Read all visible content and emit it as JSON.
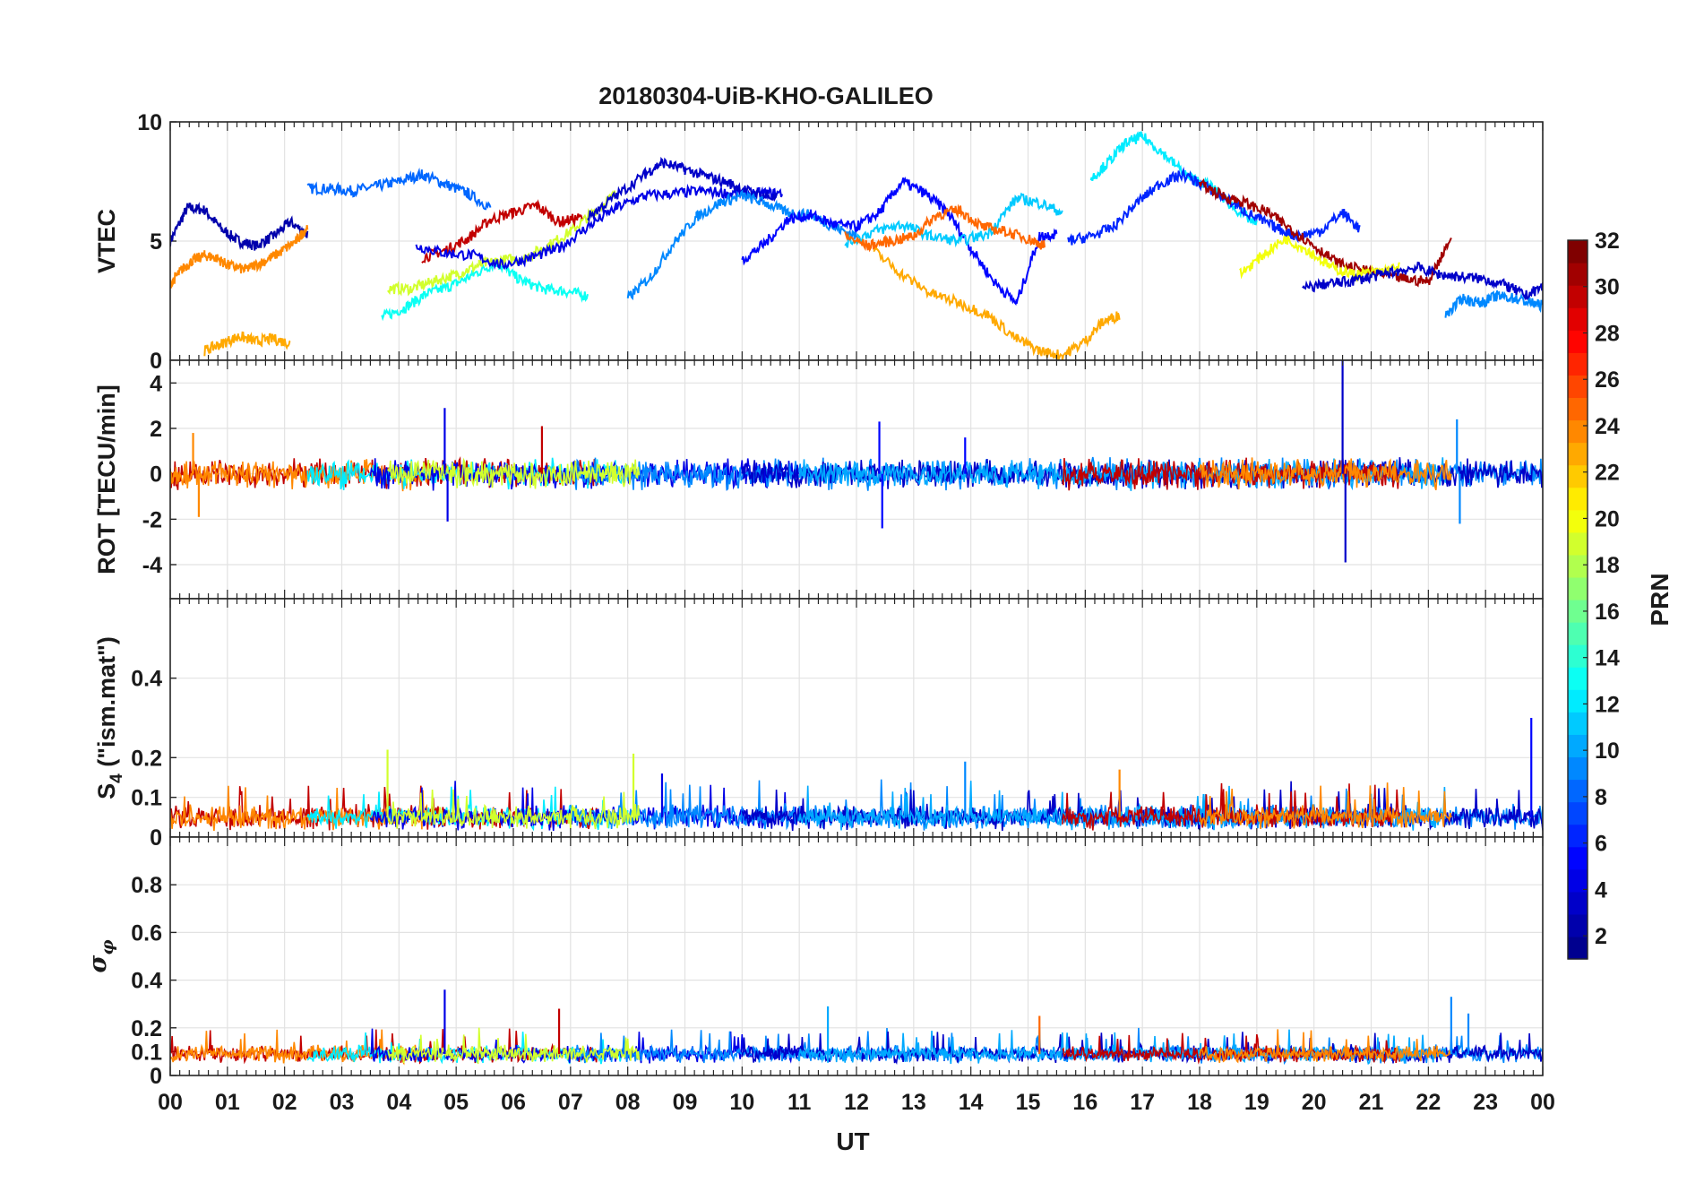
{
  "chart_data": {
    "type": "line",
    "title": "20180304-UiB-KHO-GALILEO",
    "xlabel": "UT",
    "x_ticks": [
      "00",
      "01",
      "02",
      "03",
      "04",
      "05",
      "06",
      "07",
      "08",
      "09",
      "10",
      "11",
      "12",
      "13",
      "14",
      "15",
      "16",
      "17",
      "18",
      "19",
      "20",
      "21",
      "22",
      "23",
      "00"
    ],
    "xlim": [
      0,
      24
    ],
    "grid": true,
    "colorbar": {
      "label": "PRN",
      "range": [
        1,
        32
      ],
      "ticks": [
        "2",
        "4",
        "6",
        "8",
        "10",
        "12",
        "14",
        "16",
        "18",
        "20",
        "22",
        "24",
        "26",
        "28",
        "30",
        "32"
      ],
      "colormap": "jet",
      "colors": [
        "#00008f",
        "#0000ff",
        "#0080ff",
        "#00ffff",
        "#80ff80",
        "#ffff00",
        "#ff8000",
        "#ff0000",
        "#800000"
      ]
    },
    "panels": [
      {
        "id": "vtec",
        "ylabel": "VTEC",
        "ylim": [
          0,
          10
        ],
        "yticks": [
          "0",
          "5",
          "10"
        ],
        "series": [
          {
            "prn": 2,
            "x": [
              0.0,
              0.3,
              0.6,
              0.9,
              1.2,
              1.5,
              1.8,
              2.1,
              2.4
            ],
            "y": [
              5.0,
              6.4,
              6.3,
              5.5,
              5.0,
              4.8,
              5.2,
              5.8,
              5.3
            ]
          },
          {
            "prn": 8,
            "x": [
              2.4,
              2.8,
              3.2,
              3.6,
              4.0,
              4.4,
              4.8,
              5.2,
              5.6
            ],
            "y": [
              7.2,
              7.2,
              7.1,
              7.3,
              7.5,
              7.8,
              7.4,
              7.0,
              6.4
            ]
          },
          {
            "prn": 13,
            "x": [
              3.7,
              4.1,
              4.5,
              4.9,
              5.3,
              5.7,
              6.1,
              6.5,
              6.9,
              7.3
            ],
            "y": [
              1.8,
              2.2,
              2.8,
              3.1,
              3.6,
              4.1,
              3.4,
              3.0,
              2.9,
              2.7
            ]
          },
          {
            "prn": 19,
            "x": [
              3.8,
              4.2,
              4.6,
              5.0,
              5.4,
              5.8,
              6.2,
              6.6,
              7.0,
              7.4,
              7.8
            ],
            "y": [
              3.0,
              3.0,
              3.3,
              3.6,
              4.0,
              4.2,
              4.3,
              4.8,
              5.4,
              6.2,
              7.0
            ]
          },
          {
            "prn": 30,
            "x": [
              4.4,
              4.8,
              5.2,
              5.6,
              6.0,
              6.4,
              6.8,
              7.2
            ],
            "y": [
              4.3,
              4.6,
              5.1,
              5.9,
              6.2,
              6.5,
              5.8,
              6.0
            ]
          },
          {
            "prn": 24,
            "x": [
              0.0,
              0.2,
              0.4,
              0.6,
              0.8,
              1.0,
              1.3,
              1.6,
              1.9,
              2.2,
              2.4
            ],
            "y": [
              3.2,
              3.8,
              4.2,
              4.4,
              4.3,
              4.0,
              3.8,
              4.1,
              4.5,
              5.0,
              5.6
            ]
          },
          {
            "prn": 23,
            "x": [
              0.6,
              0.9,
              1.2,
              1.5,
              1.8,
              2.1
            ],
            "y": [
              0.4,
              0.7,
              1.0,
              0.8,
              0.9,
              0.7
            ]
          },
          {
            "prn": 4,
            "x": [
              4.3,
              4.8,
              5.3,
              5.8,
              6.3,
              6.8,
              7.3,
              7.8,
              8.3,
              8.8,
              9.3,
              9.8,
              10.3,
              10.7
            ],
            "y": [
              4.8,
              4.5,
              4.4,
              4.0,
              4.3,
              4.7,
              5.6,
              6.4,
              6.9,
              7.0,
              7.1,
              7.0,
              7.0,
              7.0
            ]
          },
          {
            "prn": 3,
            "x": [
              7.3,
              7.8,
              8.3,
              8.6,
              9.0,
              9.4,
              9.8,
              10.2,
              10.6
            ],
            "y": [
              6.0,
              6.9,
              7.8,
              8.3,
              8.0,
              7.7,
              7.4,
              7.0,
              6.8
            ]
          },
          {
            "prn": 9,
            "x": [
              8.0,
              8.4,
              8.8,
              9.2,
              9.6,
              10.0,
              10.4,
              10.8,
              11.2,
              11.6,
              12.0
            ],
            "y": [
              2.6,
              3.5,
              4.9,
              6.0,
              6.6,
              6.9,
              6.6,
              6.2,
              6.1,
              5.6,
              5.2
            ]
          },
          {
            "prn": 5,
            "x": [
              10.0,
              10.4,
              10.8,
              11.2,
              11.6,
              12.0,
              12.4,
              12.8,
              13.2,
              13.6,
              14.0,
              14.4,
              14.8,
              15.2,
              15.5
            ],
            "y": [
              4.2,
              4.9,
              5.9,
              6.1,
              5.7,
              5.6,
              6.2,
              7.5,
              7.0,
              6.2,
              4.7,
              3.3,
              2.4,
              5.2,
              5.3
            ]
          },
          {
            "prn": 11,
            "x": [
              11.8,
              12.3,
              12.8,
              13.3,
              13.8,
              14.3,
              14.8,
              15.2,
              15.6
            ],
            "y": [
              4.9,
              5.4,
              5.7,
              5.2,
              5.0,
              5.3,
              6.8,
              6.6,
              6.2
            ]
          },
          {
            "prn": 25,
            "x": [
              11.8,
              12.2,
              12.6,
              13.0,
              13.4,
              13.8,
              14.2,
              14.6,
              15.0,
              15.3
            ],
            "y": [
              5.2,
              4.8,
              5.0,
              5.2,
              6.1,
              6.3,
              5.6,
              5.4,
              5.1,
              4.8
            ]
          },
          {
            "prn": 23,
            "x": [
              12.3,
              12.8,
              13.3,
              13.8,
              14.3,
              14.8,
              15.2,
              15.6,
              16.0,
              16.3,
              16.6
            ],
            "y": [
              4.6,
              3.6,
              2.8,
              2.4,
              1.9,
              0.9,
              0.4,
              0.2,
              0.8,
              1.6,
              1.9
            ]
          },
          {
            "prn": 12,
            "x": [
              16.1,
              16.4,
              16.7,
              17.0,
              17.4,
              17.8,
              18.2,
              18.6,
              19.0
            ],
            "y": [
              7.6,
              8.3,
              9.1,
              9.4,
              8.6,
              7.7,
              7.3,
              6.4,
              5.7
            ]
          },
          {
            "prn": 6,
            "x": [
              15.7,
              16.1,
              16.5,
              16.9,
              17.3,
              17.7,
              18.1,
              18.5,
              18.9,
              19.3,
              19.7,
              20.1,
              20.5,
              20.8
            ],
            "y": [
              5.0,
              5.2,
              5.6,
              6.6,
              7.4,
              7.8,
              7.3,
              6.7,
              6.1,
              5.6,
              5.2,
              5.4,
              6.2,
              5.5
            ]
          },
          {
            "prn": 31,
            "x": [
              18.0,
              18.4,
              18.8,
              19.2,
              19.6,
              20.0,
              20.4,
              20.8,
              21.2,
              21.6,
              22.0,
              22.4
            ],
            "y": [
              7.4,
              6.9,
              6.6,
              6.2,
              5.5,
              4.8,
              4.1,
              3.8,
              3.6,
              3.4,
              3.3,
              5.2
            ]
          },
          {
            "prn": 20,
            "x": [
              18.7,
              19.1,
              19.5,
              19.9,
              20.3,
              20.7,
              21.1,
              21.5
            ],
            "y": [
              3.6,
              4.4,
              5.1,
              4.6,
              3.9,
              3.6,
              3.7,
              3.9
            ]
          },
          {
            "prn": 3,
            "x": [
              19.8,
              20.2,
              20.6,
              21.0,
              21.4,
              21.8,
              22.2,
              22.6,
              23.0,
              23.4,
              23.7,
              24.0
            ],
            "y": [
              3.0,
              3.2,
              3.3,
              3.5,
              3.7,
              3.9,
              3.6,
              3.5,
              3.4,
              3.1,
              2.7,
              3.1
            ]
          },
          {
            "prn": 9,
            "x": [
              22.3,
              22.6,
              22.9,
              23.2,
              23.5,
              23.8,
              24.0
            ],
            "y": [
              1.9,
              2.6,
              2.4,
              2.7,
              2.6,
              2.4,
              2.3
            ]
          }
        ]
      },
      {
        "id": "rot",
        "ylabel": "ROT [TECU/min]",
        "ylim": [
          -5.5,
          5
        ],
        "yticks": [
          "-4",
          "-2",
          "0",
          "2",
          "4"
        ],
        "spikes": [
          {
            "x": 0.4,
            "y": 1.8,
            "prn": 24
          },
          {
            "x": 0.5,
            "y": -1.9,
            "prn": 24
          },
          {
            "x": 4.8,
            "y": 2.9,
            "prn": 4
          },
          {
            "x": 4.85,
            "y": -2.1,
            "prn": 4
          },
          {
            "x": 6.5,
            "y": 2.1,
            "prn": 30
          },
          {
            "x": 12.4,
            "y": 2.3,
            "prn": 5
          },
          {
            "x": 12.45,
            "y": -2.4,
            "prn": 5
          },
          {
            "x": 13.9,
            "y": 1.6,
            "prn": 5
          },
          {
            "x": 20.5,
            "y": 5.0,
            "prn": 3
          },
          {
            "x": 20.55,
            "y": -3.9,
            "prn": 3
          },
          {
            "x": 22.5,
            "y": 2.4,
            "prn": 9
          },
          {
            "x": 22.55,
            "y": -2.2,
            "prn": 9
          }
        ]
      },
      {
        "id": "s4",
        "ylabel": "S4 (\"ism.mat\")",
        "ylim": [
          0,
          0.6
        ],
        "yticks": [
          "0",
          "0.1",
          "0.2",
          "0.4"
        ],
        "spikes": [
          {
            "x": 3.8,
            "y": 0.22,
            "prn": 19
          },
          {
            "x": 8.1,
            "y": 0.21,
            "prn": 19
          },
          {
            "x": 8.6,
            "y": 0.16,
            "prn": 4
          },
          {
            "x": 13.9,
            "y": 0.19,
            "prn": 9
          },
          {
            "x": 16.6,
            "y": 0.17,
            "prn": 24
          },
          {
            "x": 23.8,
            "y": 0.3,
            "prn": 5
          }
        ]
      },
      {
        "id": "sigma_phi",
        "ylabel": "σφ",
        "ylim": [
          0,
          1.0
        ],
        "yticks": [
          "0",
          "0.1",
          "0.2",
          "0.4",
          "0.6",
          "0.8"
        ],
        "spikes": [
          {
            "x": 4.8,
            "y": 0.36,
            "prn": 4
          },
          {
            "x": 6.8,
            "y": 0.28,
            "prn": 30
          },
          {
            "x": 11.5,
            "y": 0.29,
            "prn": 10
          },
          {
            "x": 15.2,
            "y": 0.25,
            "prn": 25
          },
          {
            "x": 22.4,
            "y": 0.33,
            "prn": 9
          },
          {
            "x": 22.7,
            "y": 0.26,
            "prn": 9
          }
        ]
      }
    ]
  }
}
